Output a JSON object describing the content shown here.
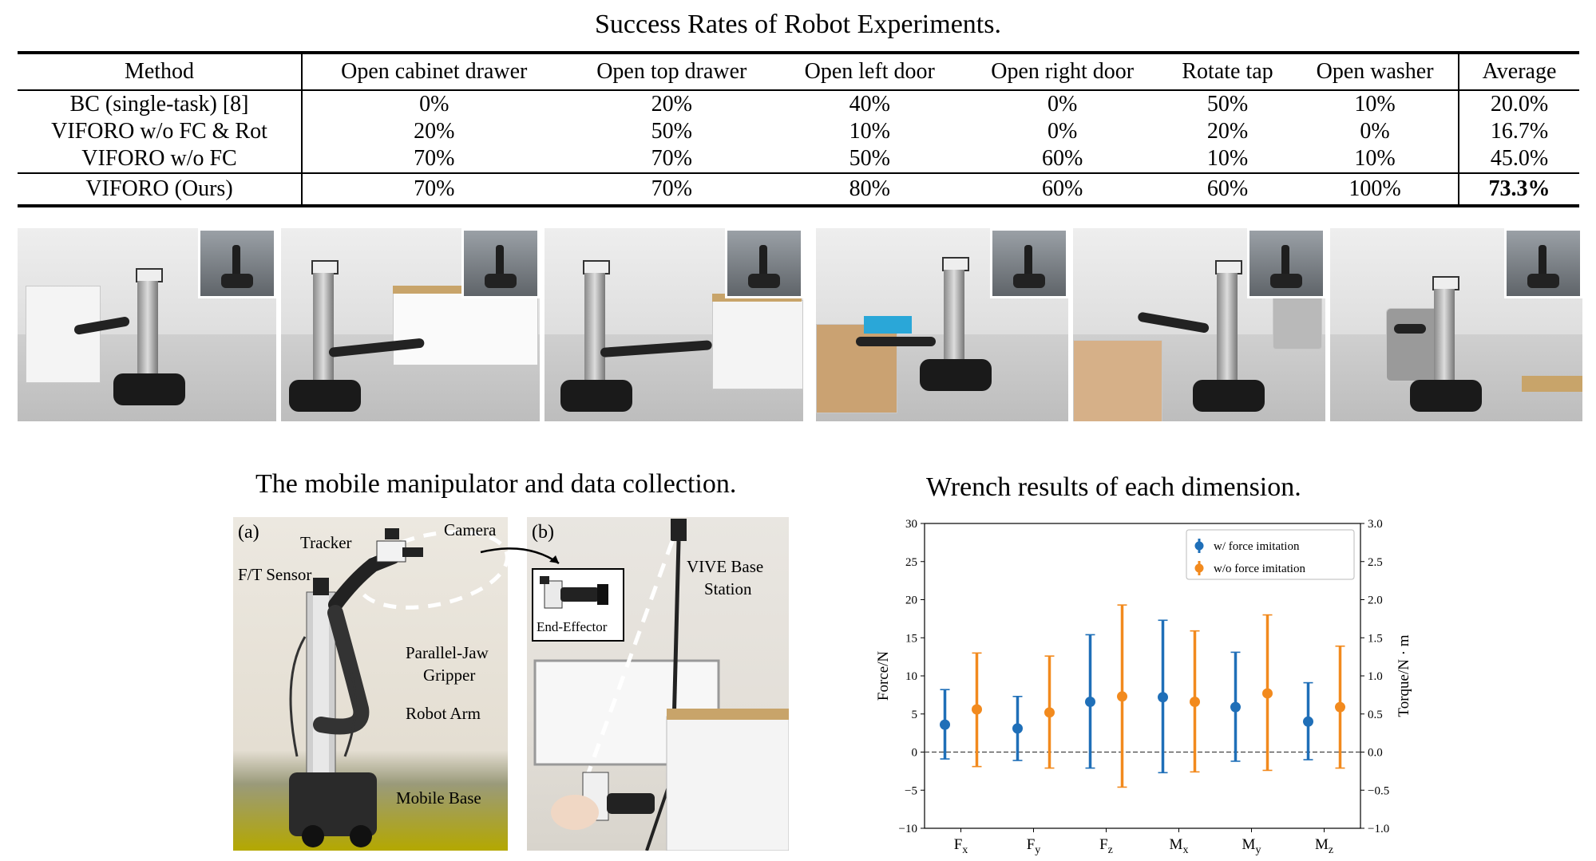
{
  "table": {
    "title": "Success Rates of Robot Experiments.",
    "headers": [
      "Method",
      "Open cabinet drawer",
      "Open top drawer",
      "Open left door",
      "Open right door",
      "Rotate tap",
      "Open washer",
      "Average"
    ],
    "rows": [
      [
        "BC (single-task) [8]",
        "0%",
        "20%",
        "40%",
        "0%",
        "50%",
        "10%",
        "20.0%"
      ],
      [
        "VIFORO w/o FC & Rot",
        "20%",
        "50%",
        "10%",
        "0%",
        "20%",
        "0%",
        "16.7%"
      ],
      [
        "VIFORO w/o FC",
        "70%",
        "70%",
        "50%",
        "60%",
        "10%",
        "10%",
        "45.0%"
      ],
      [
        "VIFORO (Ours)",
        "70%",
        "70%",
        "80%",
        "60%",
        "60%",
        "100%",
        "73.3%"
      ]
    ]
  },
  "figure_left": {
    "title": "The mobile manipulator and data collection.",
    "panel_a_tag": "(a)",
    "panel_b_tag": "(b)",
    "labels": {
      "tracker": "Tracker",
      "camera": "Camera",
      "ft_sensor": "F/T Sensor",
      "parallel_jaw_1": "Parallel-Jaw",
      "parallel_jaw_2": "Gripper",
      "robot_arm": "Robot Arm",
      "mobile_base": "Mobile Base",
      "end_effector": "End-Effector",
      "vive_1": "VIVE Base",
      "vive_2": "Station"
    }
  },
  "chart_data": {
    "type": "scatter",
    "title": "Wrench results of each dimension.",
    "categories": [
      "F_x",
      "F_y",
      "F_z",
      "M_x",
      "M_y",
      "M_z"
    ],
    "tick_labels": [
      {
        "base": "F",
        "sub": "x"
      },
      {
        "base": "F",
        "sub": "y"
      },
      {
        "base": "F",
        "sub": "z"
      },
      {
        "base": "M",
        "sub": "x"
      },
      {
        "base": "M",
        "sub": "y"
      },
      {
        "base": "M",
        "sub": "z"
      }
    ],
    "ylabel_left": "Force/N",
    "ylabel_right": "Torque/N · m",
    "ylim_left": [
      -10,
      30
    ],
    "ylim_right": [
      -1.0,
      3.0
    ],
    "yticks_left": [
      "−10",
      "−5",
      "0",
      "5",
      "10",
      "15",
      "20",
      "25",
      "30"
    ],
    "yticks_right": [
      "−1.0",
      "−0.5",
      "0.0",
      "0.5",
      "1.0",
      "1.5",
      "2.0",
      "2.5",
      "3.0"
    ],
    "legend_position": "top-right",
    "series": [
      {
        "name": "w/  force imitation",
        "color": "#1f6fb8",
        "mean": [
          3.6,
          3.1,
          6.6,
          7.2,
          5.9,
          4.0
        ],
        "low": [
          -0.9,
          -1.1,
          -2.1,
          -2.7,
          -1.2,
          -1.0
        ],
        "high": [
          8.2,
          7.3,
          15.4,
          17.3,
          13.1,
          9.1
        ]
      },
      {
        "name": "w/o force imitation",
        "color": "#f28a1e",
        "mean": [
          5.6,
          5.2,
          7.3,
          6.6,
          7.7,
          5.9
        ],
        "low": [
          -1.9,
          -2.1,
          -4.6,
          -2.6,
          -2.4,
          -2.1
        ],
        "high": [
          13.0,
          12.6,
          19.3,
          15.9,
          18.0,
          13.9
        ]
      }
    ]
  }
}
